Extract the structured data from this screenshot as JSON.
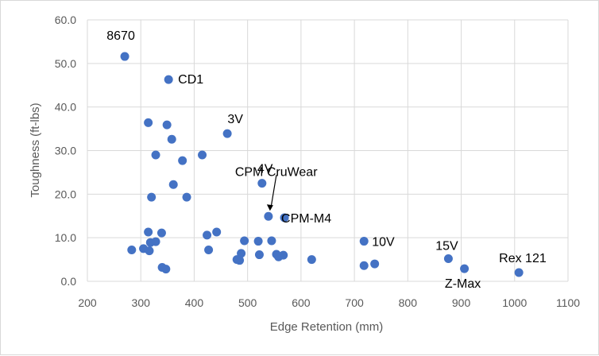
{
  "chart_data": {
    "type": "scatter",
    "title": "",
    "xlabel": "Edge Retention (mm)",
    "ylabel": "Toughness (ft-lbs)",
    "xlim": [
      200,
      1100
    ],
    "ylim": [
      0,
      60
    ],
    "xticks": [
      "200",
      "300",
      "400",
      "500",
      "600",
      "700",
      "800",
      "900",
      "1000",
      "1100"
    ],
    "yticks": [
      "0.0",
      "10.0",
      "20.0",
      "30.0",
      "40.0",
      "50.0",
      "60.0"
    ],
    "grid": true,
    "legend": "none",
    "marker_color": "#4472C4",
    "points": [
      {
        "x": 270,
        "y": 51.6,
        "label": "8670"
      },
      {
        "x": 352,
        "y": 46.3,
        "label": "CD1"
      },
      {
        "x": 314,
        "y": 36.4
      },
      {
        "x": 349,
        "y": 35.9
      },
      {
        "x": 462,
        "y": 33.9,
        "label": "3V"
      },
      {
        "x": 358,
        "y": 32.6
      },
      {
        "x": 328,
        "y": 29.0
      },
      {
        "x": 415,
        "y": 29.0
      },
      {
        "x": 378,
        "y": 27.7
      },
      {
        "x": 527,
        "y": 22.5,
        "label": "CPM CruWear"
      },
      {
        "x": 361,
        "y": 22.2
      },
      {
        "x": 320,
        "y": 19.3
      },
      {
        "x": 386,
        "y": 19.3
      },
      {
        "x": 539,
        "y": 14.9,
        "label": "4V"
      },
      {
        "x": 569,
        "y": 14.6,
        "label": "CPM-M4"
      },
      {
        "x": 314,
        "y": 11.3
      },
      {
        "x": 339,
        "y": 11.1
      },
      {
        "x": 442,
        "y": 11.3
      },
      {
        "x": 424,
        "y": 10.6
      },
      {
        "x": 494,
        "y": 9.3
      },
      {
        "x": 520,
        "y": 9.2
      },
      {
        "x": 545,
        "y": 9.3
      },
      {
        "x": 718,
        "y": 9.2,
        "label": "10V"
      },
      {
        "x": 318,
        "y": 8.9
      },
      {
        "x": 328,
        "y": 9.1
      },
      {
        "x": 305,
        "y": 7.5
      },
      {
        "x": 283,
        "y": 7.2
      },
      {
        "x": 316,
        "y": 7.0
      },
      {
        "x": 427,
        "y": 7.2
      },
      {
        "x": 488,
        "y": 6.4
      },
      {
        "x": 522,
        "y": 6.1
      },
      {
        "x": 554,
        "y": 6.2
      },
      {
        "x": 567,
        "y": 6.0
      },
      {
        "x": 558,
        "y": 5.6
      },
      {
        "x": 480,
        "y": 5.0
      },
      {
        "x": 485,
        "y": 4.8
      },
      {
        "x": 620,
        "y": 5.0
      },
      {
        "x": 876,
        "y": 5.2,
        "label": "15V"
      },
      {
        "x": 718,
        "y": 3.6
      },
      {
        "x": 738,
        "y": 4.0
      },
      {
        "x": 340,
        "y": 3.2
      },
      {
        "x": 347,
        "y": 2.8
      },
      {
        "x": 906,
        "y": 2.9,
        "label": "Z-Max"
      },
      {
        "x": 1008,
        "y": 2.0,
        "label": "Rex 121"
      }
    ]
  }
}
